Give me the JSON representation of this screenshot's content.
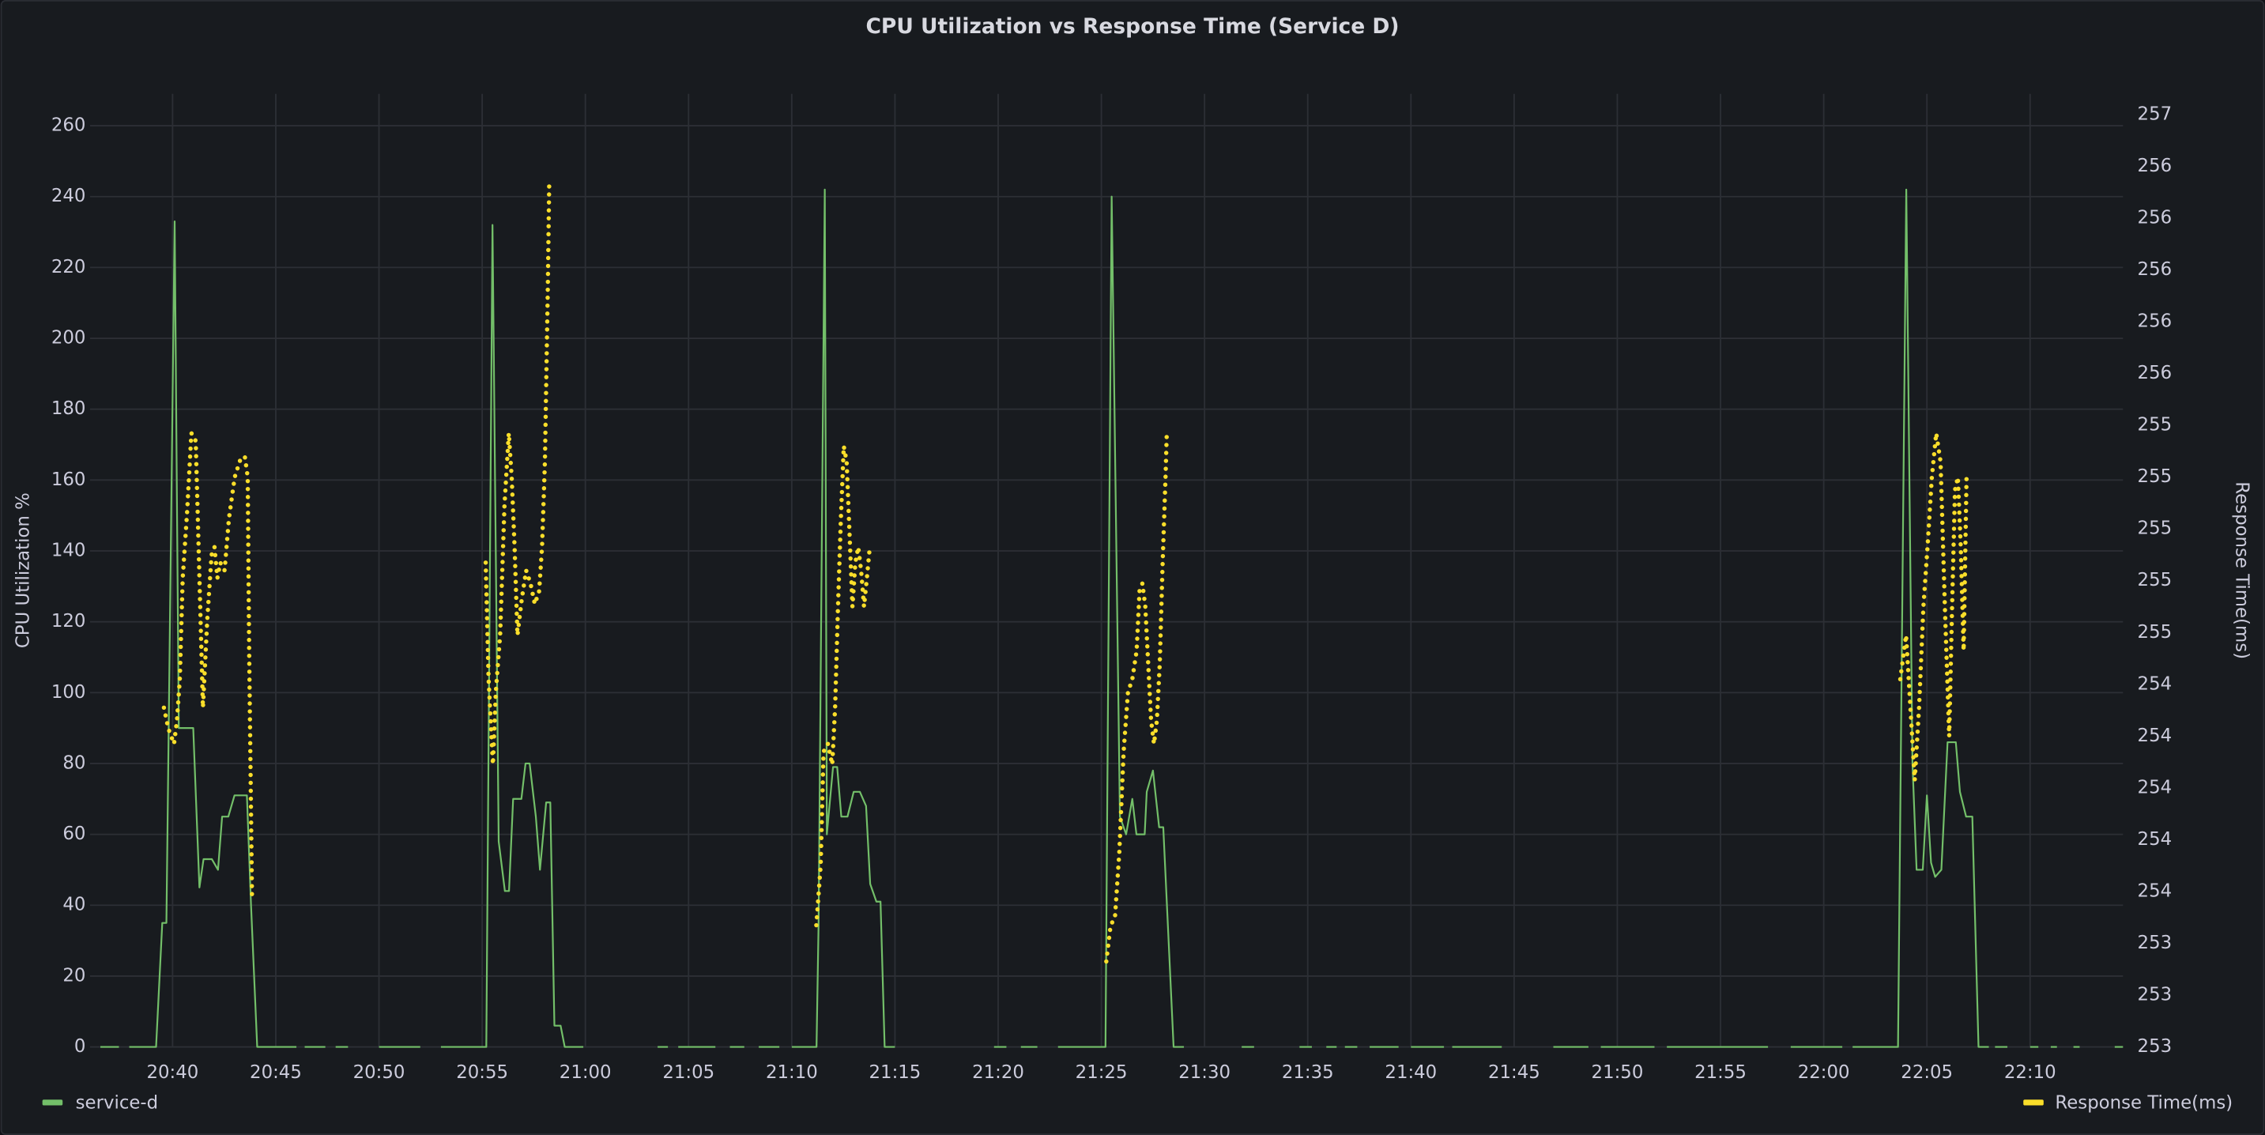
{
  "chart_data": {
    "type": "line",
    "title": "CPU Utilization vs Response Time (Service D)",
    "ylabel": "CPU Utilization %",
    "y2label": "Response Time(ms)",
    "grid": true,
    "xlim": [
      1236,
      1334.5
    ],
    "xticks": [
      {
        "value": 1240,
        "label": "20:40"
      },
      {
        "value": 1245,
        "label": "20:45"
      },
      {
        "value": 1250,
        "label": "20:50"
      },
      {
        "value": 1255,
        "label": "20:55"
      },
      {
        "value": 1260,
        "label": "21:00"
      },
      {
        "value": 1265,
        "label": "21:05"
      },
      {
        "value": 1270,
        "label": "21:10"
      },
      {
        "value": 1275,
        "label": "21:15"
      },
      {
        "value": 1280,
        "label": "21:20"
      },
      {
        "value": 1285,
        "label": "21:25"
      },
      {
        "value": 1290,
        "label": "21:30"
      },
      {
        "value": 1295,
        "label": "21:35"
      },
      {
        "value": 1300,
        "label": "21:40"
      },
      {
        "value": 1305,
        "label": "21:45"
      },
      {
        "value": 1310,
        "label": "21:50"
      },
      {
        "value": 1315,
        "label": "21:55"
      },
      {
        "value": 1320,
        "label": "22:00"
      },
      {
        "value": 1325,
        "label": "22:05"
      },
      {
        "value": 1330,
        "label": "22:10"
      }
    ],
    "ylim": [
      0,
      269
    ],
    "yticks": [
      0,
      20,
      40,
      60,
      80,
      100,
      120,
      140,
      160,
      180,
      200,
      220,
      240,
      260
    ],
    "y2lim": [
      253,
      256.68
    ],
    "y2ticks": [
      {
        "value": 253.0,
        "label": "253"
      },
      {
        "value": 253.2,
        "label": "253"
      },
      {
        "value": 253.4,
        "label": "253"
      },
      {
        "value": 253.6,
        "label": "254"
      },
      {
        "value": 253.8,
        "label": "254"
      },
      {
        "value": 254.0,
        "label": "254"
      },
      {
        "value": 254.2,
        "label": "254"
      },
      {
        "value": 254.4,
        "label": "254"
      },
      {
        "value": 254.6,
        "label": "255"
      },
      {
        "value": 254.8,
        "label": "255"
      },
      {
        "value": 255.0,
        "label": "255"
      },
      {
        "value": 255.2,
        "label": "255"
      },
      {
        "value": 255.4,
        "label": "255"
      },
      {
        "value": 255.6,
        "label": "256"
      },
      {
        "value": 255.8,
        "label": "256"
      },
      {
        "value": 256.0,
        "label": "256"
      },
      {
        "value": 256.2,
        "label": "256"
      },
      {
        "value": 256.4,
        "label": "256"
      },
      {
        "value": 256.6,
        "label": "257"
      }
    ],
    "series": [
      {
        "name": "service-d",
        "color": "#73bf69",
        "style": "line",
        "x": [
          1236.5,
          1237.4,
          null,
          1237.9,
          1239.2,
          1239.5,
          1239.7,
          1240.1,
          1240.3,
          1241.0,
          1241.3,
          1241.5,
          1241.9,
          1242.2,
          1242.4,
          1242.7,
          1243.0,
          1243.6,
          1243.8,
          1244.1,
          1246.0,
          null,
          1246.4,
          1247.4,
          null,
          1247.9,
          1248.5,
          null,
          1250.0,
          1252.0,
          null,
          1253.0,
          1255.2,
          1255.5,
          1255.8,
          1256.1,
          1256.3,
          1256.5,
          1256.9,
          1257.1,
          1257.3,
          1257.6,
          1257.8,
          1258.1,
          1258.3,
          1258.5,
          1258.8,
          1259.0,
          1259.9,
          null,
          1263.5,
          1264.0,
          null,
          1264.5,
          1266.3,
          null,
          1267.0,
          1267.7,
          null,
          1268.4,
          1269.4,
          null,
          1270.0,
          1271.2,
          1271.3,
          1271.6,
          1271.7,
          1272.0,
          1272.2,
          1272.4,
          1272.7,
          1273.0,
          1273.3,
          1273.6,
          1273.8,
          1274.1,
          1274.3,
          1274.5,
          1275.0,
          null,
          1279.8,
          1280.4,
          null,
          1281.1,
          1281.9,
          null,
          1282.9,
          1285.2,
          1285.5,
          1285.9,
          1286.2,
          1286.5,
          1286.7,
          1287.1,
          1287.2,
          1287.5,
          1287.8,
          1288.0,
          1288.5,
          1289.0,
          null,
          1291.8,
          1292.4,
          null,
          1294.6,
          1295.2,
          null,
          1295.9,
          1296.4,
          null,
          1296.8,
          1297.4,
          null,
          1298.0,
          1299.4,
          null,
          1300.0,
          1301.6,
          null,
          1302.0,
          1304.4,
          null,
          1306.9,
          1308.6,
          null,
          1309.2,
          1311.8,
          null,
          1312.4,
          1317.3,
          null,
          1318.4,
          1320.9,
          null,
          1321.4,
          1323.6,
          1324.0,
          1324.3,
          1324.5,
          1324.8,
          1325.0,
          1325.2,
          1325.4,
          1325.7,
          1326.0,
          1326.4,
          1326.6,
          1326.9,
          1327.2,
          1327.5,
          1328.0,
          null,
          1328.3,
          1328.9,
          null,
          1330.0,
          1330.4,
          null,
          1331.0,
          1331.3,
          null,
          1332.1,
          1332.4,
          null,
          1334.1,
          1334.5
        ],
        "values": [
          0,
          0,
          null,
          0,
          0,
          35,
          35,
          233,
          90,
          90,
          45,
          53,
          53,
          50,
          65,
          65,
          71,
          71,
          40,
          0,
          0,
          null,
          0,
          0,
          null,
          0,
          0,
          null,
          0,
          0,
          null,
          0,
          0,
          232,
          58,
          44,
          44,
          70,
          70,
          80,
          80,
          65,
          50,
          69,
          69,
          6,
          6,
          0,
          0,
          null,
          0,
          0,
          null,
          0,
          0,
          null,
          0,
          0,
          null,
          0,
          0,
          null,
          0,
          0,
          35,
          242,
          60,
          79,
          79,
          65,
          65,
          72,
          72,
          68,
          46,
          41,
          41,
          0,
          0,
          null,
          0,
          0,
          null,
          0,
          0,
          null,
          0,
          0,
          240,
          65,
          60,
          70,
          60,
          60,
          72,
          78,
          62,
          62,
          0,
          0,
          null,
          0,
          0,
          null,
          0,
          0,
          null,
          0,
          0,
          null,
          0,
          0,
          null,
          0,
          0,
          null,
          0,
          0,
          null,
          0,
          0,
          null,
          0,
          0,
          null,
          0,
          0,
          null,
          0,
          0,
          null,
          0,
          0,
          null,
          0,
          0,
          242,
          80,
          50,
          50,
          71,
          52,
          48,
          50,
          86,
          86,
          72,
          65,
          65,
          0,
          0,
          null,
          0,
          0,
          null,
          0,
          0,
          null,
          0,
          0,
          null,
          0,
          0,
          null,
          0,
          0
        ]
      },
      {
        "name": "Response Time(ms)",
        "color": "#fade2a",
        "style": "points",
        "axis": "y2",
        "x": [
          1239.58,
          1239.79,
          1240.07,
          1240.21,
          1240.35,
          1240.49,
          1240.7,
          1240.91,
          1241.12,
          1241.26,
          1241.47,
          1241.68,
          1241.89,
          1242.03,
          1242.17,
          1242.31,
          1242.52,
          1242.73,
          1243.01,
          1243.29,
          1243.5,
          1243.64,
          1243.71,
          1243.85,
          null,
          1255.17,
          1255.31,
          1255.52,
          1255.66,
          1255.87,
          1256.08,
          1256.29,
          1256.43,
          1256.57,
          1256.71,
          1256.92,
          1257.13,
          1257.34,
          1257.55,
          1257.76,
          1257.9,
          1258.04,
          1258.18,
          1258.25,
          null,
          1271.19,
          1271.4,
          1271.54,
          1271.75,
          1271.96,
          1272.1,
          1272.24,
          1272.38,
          1272.52,
          1272.66,
          1272.8,
          1272.94,
          1273.08,
          1273.22,
          1273.36,
          1273.5,
          1273.64,
          1273.78,
          null,
          1285.24,
          1285.45,
          1285.66,
          1285.87,
          1286.08,
          1286.29,
          1286.5,
          1286.71,
          1286.85,
          1286.99,
          1287.13,
          1287.27,
          1287.41,
          1287.55,
          1287.69,
          1287.83,
          1287.97,
          1288.11,
          1288.17,
          null,
          1323.71,
          1323.99,
          1324.2,
          1324.41,
          1324.62,
          1324.83,
          1325.03,
          1325.24,
          1325.45,
          1325.66,
          1325.87,
          1326.08,
          1326.22,
          1326.36,
          1326.5,
          1326.64,
          1326.78,
          1326.92,
          null,
          1334.5
        ],
        "values": [
          254.31,
          254.23,
          254.17,
          254.26,
          254.42,
          254.81,
          255.06,
          255.37,
          255.34,
          254.93,
          254.31,
          254.65,
          254.9,
          254.93,
          254.81,
          254.87,
          254.84,
          255.04,
          255.2,
          255.27,
          255.28,
          255.2,
          254.53,
          253.56,
          null,
          254.87,
          254.42,
          254.09,
          254.37,
          254.59,
          255.09,
          255.37,
          255.2,
          254.93,
          254.59,
          254.73,
          254.84,
          254.79,
          254.71,
          254.76,
          254.93,
          255.26,
          255.93,
          256.35,
          null,
          253.47,
          253.7,
          254.14,
          254.17,
          254.09,
          254.31,
          254.7,
          255.04,
          255.32,
          255.26,
          254.98,
          254.7,
          254.87,
          254.93,
          254.84,
          254.7,
          254.81,
          254.93,
          null,
          253.33,
          253.47,
          253.5,
          253.75,
          254.14,
          254.37,
          254.42,
          254.53,
          254.76,
          254.79,
          254.7,
          254.48,
          254.26,
          254.17,
          254.26,
          254.48,
          254.87,
          255.2,
          255.37,
          null,
          254.42,
          254.59,
          254.31,
          254.03,
          254.31,
          254.7,
          254.93,
          255.2,
          255.37,
          255.26,
          254.7,
          254.2,
          254.7,
          255.15,
          255.2,
          254.93,
          254.53,
          255.2,
          null,
          254.42
        ]
      }
    ]
  }
}
